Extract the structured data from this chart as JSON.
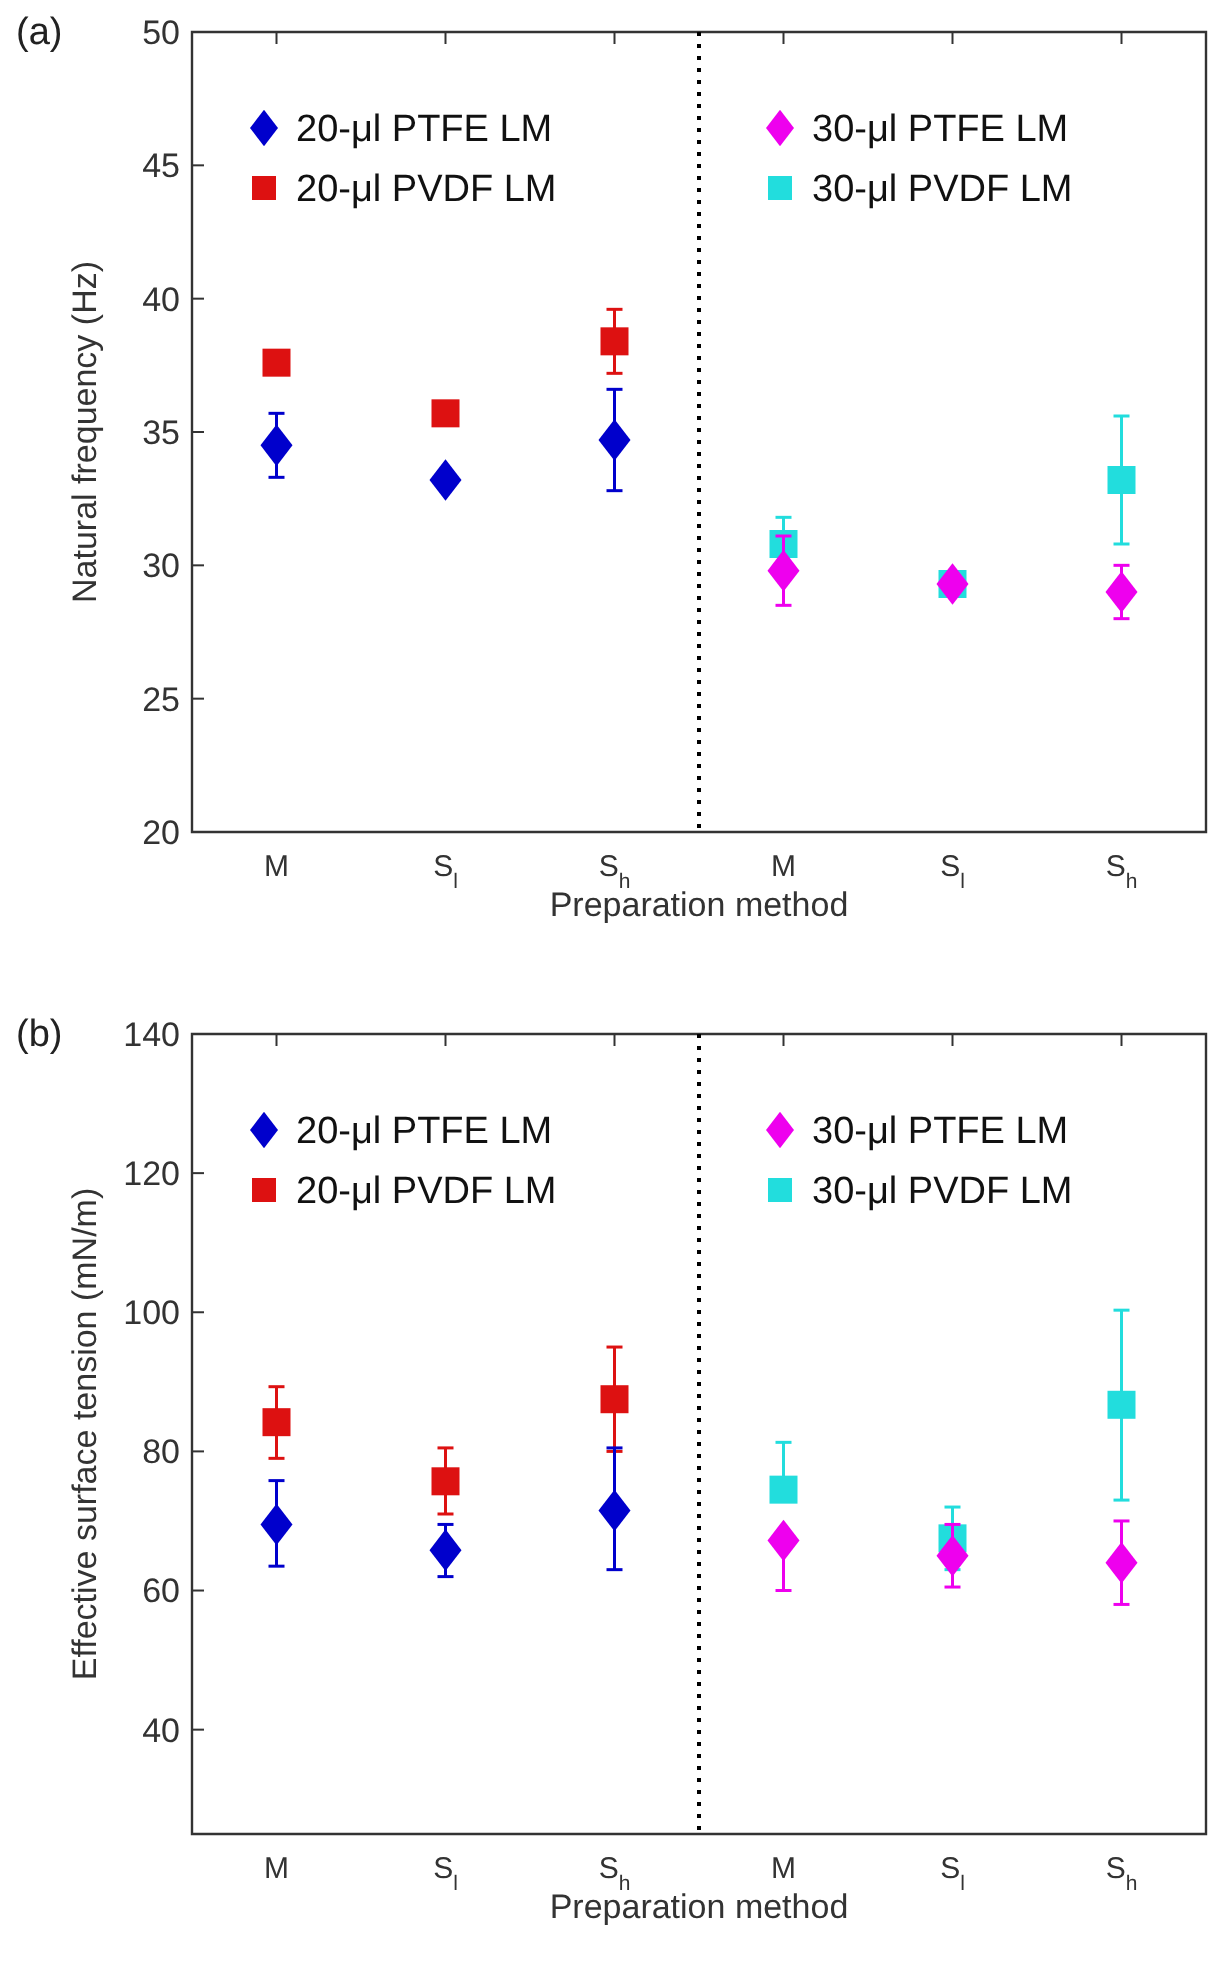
{
  "chart_data": [
    {
      "type": "scatter",
      "title": "(a)",
      "xlabel": "Preparation method",
      "ylabel": "Natural frequency (Hz)",
      "categories": [
        "M",
        "S$_{l}$",
        "S$_{h}$",
        "M",
        "S$_{l}$",
        "S$_{h}$"
      ],
      "ylim": [
        20,
        50
      ],
      "yticks": [
        20,
        25,
        30,
        35,
        40,
        45,
        50
      ],
      "grid": false,
      "legend": "top",
      "series": [
        {
          "name": "20-μl PTFE LM",
          "color": "#0000cc",
          "marker": "diamond",
          "values": [
            34.5,
            33.2,
            34.7,
            null,
            null,
            null
          ],
          "errors": [
            1.2,
            0.3,
            [
              32.8,
              36.6
            ],
            null,
            null,
            null
          ]
        },
        {
          "name": "20-μl PVDF LM",
          "color": "#dd1111",
          "marker": "square",
          "values": [
            37.6,
            35.7,
            38.4,
            null,
            null,
            null
          ],
          "errors": [
            0.4,
            0.4,
            1.2,
            null,
            null,
            null
          ]
        },
        {
          "name": "30-μl PTFE LM",
          "color": "#ee00ee",
          "marker": "diamond",
          "values": [
            null,
            null,
            null,
            29.8,
            29.3,
            29.0
          ],
          "errors": [
            null,
            null,
            null,
            1.3,
            null,
            1.0
          ]
        },
        {
          "name": "30-μl PVDF LM",
          "color": "#22dddd",
          "marker": "square",
          "values": [
            null,
            null,
            null,
            30.8,
            29.3,
            33.2
          ],
          "errors": [
            null,
            null,
            null,
            1.0,
            null,
            2.4
          ]
        }
      ]
    },
    {
      "type": "scatter",
      "title": "(b)",
      "xlabel": "Preparation method",
      "ylabel": "Effective surface tension (mN/m)",
      "categories": [
        "M",
        "S$_{l}$",
        "S$_{h}$",
        "M",
        "S$_{l}$",
        "S$_{h}$"
      ],
      "ylim": [
        25,
        140
      ],
      "yticks": [
        40,
        60,
        80,
        100,
        120,
        140
      ],
      "grid": false,
      "legend": "top",
      "series": [
        {
          "name": "20-μl PTFE LM",
          "color": "#0000cc",
          "marker": "diamond",
          "values": [
            69.5,
            65.8,
            71.5,
            null,
            null,
            null
          ],
          "errors": [
            [
              63.5,
              75.8
            ],
            [
              62,
              69.5
            ],
            [
              63,
              80.5
            ],
            null,
            null,
            null
          ]
        },
        {
          "name": "20-μl PVDF LM",
          "color": "#dd1111",
          "marker": "square",
          "values": [
            84.2,
            75.7,
            87.5,
            null,
            null,
            null
          ],
          "errors": [
            [
              79,
              89.3
            ],
            [
              71,
              80.5
            ],
            [
              80,
              95
            ],
            null,
            null,
            null
          ]
        },
        {
          "name": "30-μl PTFE LM",
          "color": "#ee00ee",
          "marker": "diamond",
          "values": [
            null,
            null,
            null,
            67.2,
            65,
            64
          ],
          "errors": [
            null,
            null,
            null,
            [
              60,
              67.2
            ],
            [
              60.5,
              69.5
            ],
            [
              58,
              70
            ]
          ]
        },
        {
          "name": "30-μl PVDF LM",
          "color": "#22dddd",
          "marker": "square",
          "values": [
            null,
            null,
            null,
            74.5,
            67.5,
            86.7
          ],
          "errors": [
            null,
            null,
            null,
            [
              74.5,
              81.3
            ],
            [
              63,
              72
            ],
            [
              73,
              100.3
            ]
          ]
        }
      ]
    }
  ]
}
